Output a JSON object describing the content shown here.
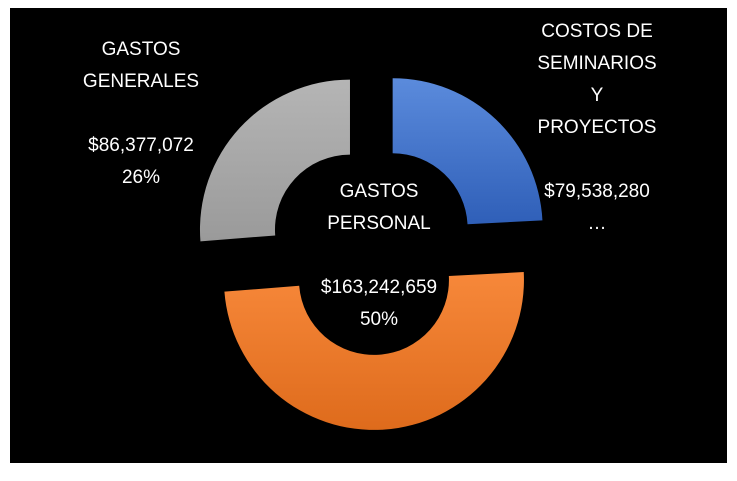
{
  "chart_data": {
    "type": "donut",
    "categories": [
      "COSTOS DE SEMINARIOS Y PROYECTOS",
      "GASTOS PERSONAL",
      "GASTOS GENERALES"
    ],
    "values": [
      79538280,
      163242659,
      86377072
    ],
    "value_labels": [
      "$79,538,280…",
      "$163,242,659",
      "$86,377,072"
    ],
    "percent_labels": [
      null,
      "50%",
      "26%"
    ],
    "colors": [
      "#4472c4",
      "#ed7d31",
      "#a5a5a5"
    ],
    "exploded": true
  }
}
